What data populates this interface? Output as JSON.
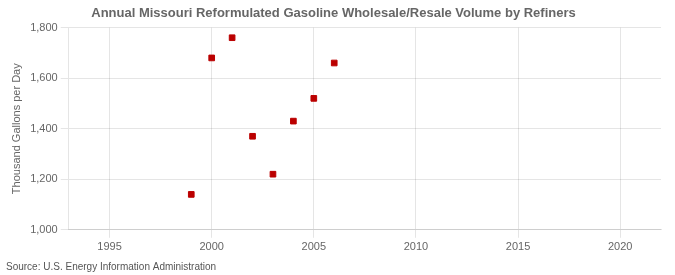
{
  "chart_data": {
    "type": "scatter",
    "title": "Annual Missouri Reformulated Gasoline Wholesale/Resale Volume by Refiners",
    "ylabel": "Thousand Gallons per Day",
    "annotations": [
      "Source: U.S. Energy Information Administration"
    ],
    "x": [
      1999,
      2000,
      2001,
      2002,
      2003,
      2004,
      2005,
      2006
    ],
    "values": [
      1140,
      1680,
      1760,
      1370,
      1220,
      1430,
      1520,
      1660
    ],
    "color": "#bb0000",
    "marker": "square",
    "xlim": [
      1993,
      2022
    ],
    "ylim": [
      1000,
      1800
    ],
    "xticks": [
      1995,
      2000,
      2005,
      2010,
      2015,
      2020
    ],
    "yticks": [
      {
        "value": 1000,
        "label": "1,000"
      },
      {
        "value": 1200,
        "label": "1,200"
      },
      {
        "value": 1400,
        "label": "1,400"
      },
      {
        "value": 1600,
        "label": "1,600"
      },
      {
        "value": 1800,
        "label": "1,800"
      }
    ],
    "grid": true
  }
}
